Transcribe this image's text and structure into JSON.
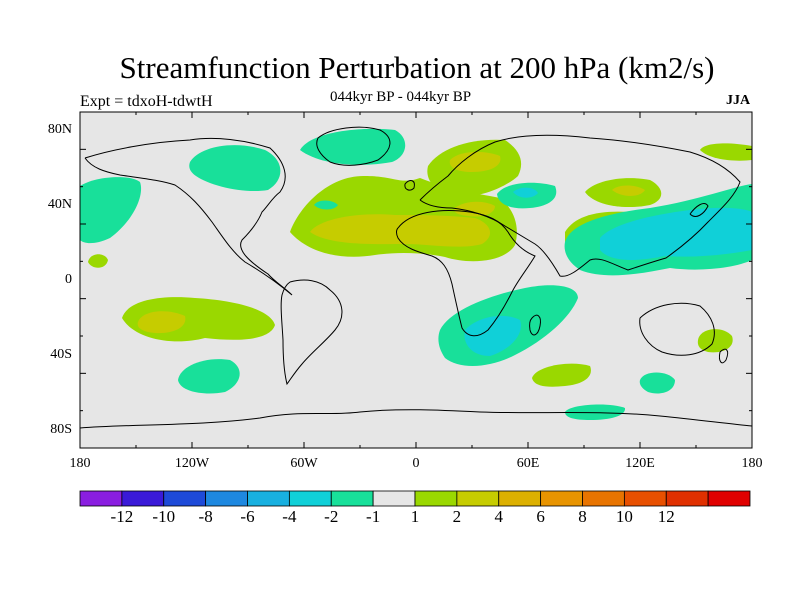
{
  "title": "Streamfunction Perturbation at 200 hPa (km2/s)",
  "subtitle_left": "Expt = tdxoH-tdwtH",
  "subtitle_center": "044kyr BP - 044kyr BP",
  "subtitle_right": "JJA",
  "lat_labels": [
    "80N",
    "40N",
    "0",
    "40S",
    "80S"
  ],
  "lon_labels": [
    "180",
    "120W",
    "60W",
    "0",
    "60E",
    "120E",
    "180"
  ],
  "colorbar": {
    "colors": [
      "#8a1ee0",
      "#3a1ad8",
      "#1e4ad8",
      "#1e88e0",
      "#18b0e0",
      "#10d0d8",
      "#18e09a",
      "#e6e6e6",
      "#9ad800",
      "#c6cc00",
      "#dcb000",
      "#e89400",
      "#e87400",
      "#e85000",
      "#e03000",
      "#e00000"
    ],
    "labels": [
      "-12",
      "-10",
      "-8",
      "-6",
      "-4",
      "-2",
      "-1",
      "1",
      "2",
      "4",
      "6",
      "8",
      "10",
      "12"
    ]
  },
  "field_colors": {
    "neg1": "#18e09a",
    "neg2": "#10d0d8",
    "pos1": "#9ad800",
    "pos2": "#c6cc00",
    "ocean": "#e6e6e6"
  }
}
